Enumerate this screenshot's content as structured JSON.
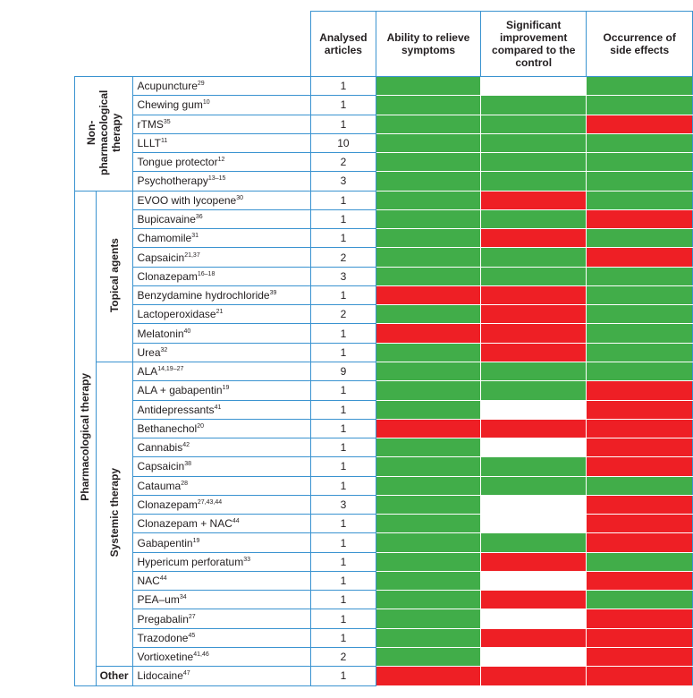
{
  "headers": {
    "articles": "Analysed articles",
    "ability": "Ability to relieve symptoms",
    "improvement": "Significant improvement compared to the control",
    "side_effects": "Occurrence of side effects"
  },
  "groups": {
    "non_pharm": "Non-pharmacological therapy",
    "pharm": "Pharmacological therapy",
    "topical": "Topical agents",
    "systemic": "Systemic therapy",
    "other": "Other"
  },
  "colors": {
    "green": "#41ad49",
    "red": "#ee1f25",
    "white": "#ffffff"
  },
  "rows": [
    {
      "group": "non_pharm",
      "name": "Acupuncture",
      "ref": "29",
      "articles": "1",
      "ability": "green",
      "improvement": "white",
      "side_effects": "green"
    },
    {
      "group": "non_pharm",
      "name": "Chewing gum",
      "ref": "10",
      "articles": "1",
      "ability": "green",
      "improvement": "green",
      "side_effects": "green"
    },
    {
      "group": "non_pharm",
      "name": "rTMS",
      "ref": "35",
      "articles": "1",
      "ability": "green",
      "improvement": "green",
      "side_effects": "red"
    },
    {
      "group": "non_pharm",
      "name": "LLLT",
      "ref": "11",
      "articles": "10",
      "ability": "green",
      "improvement": "green",
      "side_effects": "green"
    },
    {
      "group": "non_pharm",
      "name": "Tongue protector",
      "ref": "12",
      "articles": "2",
      "ability": "green",
      "improvement": "green",
      "side_effects": "green"
    },
    {
      "group": "non_pharm",
      "name": "Psychotherapy",
      "ref": "13–15",
      "articles": "3",
      "ability": "green",
      "improvement": "green",
      "side_effects": "green"
    },
    {
      "group": "topical",
      "name": "EVOO with lycopene",
      "ref": "30",
      "articles": "1",
      "ability": "green",
      "improvement": "red",
      "side_effects": "green"
    },
    {
      "group": "topical",
      "name": "Bupicavaine",
      "ref": "36",
      "articles": "1",
      "ability": "green",
      "improvement": "green",
      "side_effects": "red"
    },
    {
      "group": "topical",
      "name": "Chamomile",
      "ref": "31",
      "articles": "1",
      "ability": "green",
      "improvement": "red",
      "side_effects": "green"
    },
    {
      "group": "topical",
      "name": "Capsaicin",
      "ref": "21,37",
      "articles": "2",
      "ability": "green",
      "improvement": "green",
      "side_effects": "red"
    },
    {
      "group": "topical",
      "name": "Clonazepam",
      "ref": "16–18",
      "articles": "3",
      "ability": "green",
      "improvement": "green",
      "side_effects": "green"
    },
    {
      "group": "topical",
      "name": "Benzydamine hydrochloride",
      "ref": "39",
      "articles": "1",
      "ability": "red",
      "improvement": "red",
      "side_effects": "green"
    },
    {
      "group": "topical",
      "name": "Lactoperoxidase",
      "ref": "21",
      "articles": "2",
      "ability": "green",
      "improvement": "red",
      "side_effects": "green"
    },
    {
      "group": "topical",
      "name": "Melatonin",
      "ref": "40",
      "articles": "1",
      "ability": "red",
      "improvement": "red",
      "side_effects": "green"
    },
    {
      "group": "topical",
      "name": "Urea",
      "ref": "32",
      "articles": "1",
      "ability": "green",
      "improvement": "red",
      "side_effects": "green"
    },
    {
      "group": "systemic",
      "name": "ALA",
      "ref": "14,19–27",
      "articles": "9",
      "ability": "green",
      "improvement": "green",
      "side_effects": "green"
    },
    {
      "group": "systemic",
      "name": "ALA + gabapentin",
      "ref": "19",
      "articles": "1",
      "ability": "green",
      "improvement": "green",
      "side_effects": "red"
    },
    {
      "group": "systemic",
      "name": "Antidepressants",
      "ref": "41",
      "articles": "1",
      "ability": "green",
      "improvement": "white",
      "side_effects": "red"
    },
    {
      "group": "systemic",
      "name": "Bethanechol",
      "ref": "20",
      "articles": "1",
      "ability": "red",
      "improvement": "red",
      "side_effects": "red"
    },
    {
      "group": "systemic",
      "name": "Cannabis",
      "ref": "42",
      "articles": "1",
      "ability": "green",
      "improvement": "white",
      "side_effects": "red"
    },
    {
      "group": "systemic",
      "name": "Capsaicin",
      "ref": "38",
      "articles": "1",
      "ability": "green",
      "improvement": "green",
      "side_effects": "red"
    },
    {
      "group": "systemic",
      "name": "Catauma",
      "ref": "28",
      "articles": "1",
      "ability": "green",
      "improvement": "green",
      "side_effects": "green"
    },
    {
      "group": "systemic",
      "name": "Clonazepam",
      "ref": "27,43,44",
      "articles": "3",
      "ability": "green",
      "improvement": "white",
      "side_effects": "red"
    },
    {
      "group": "systemic",
      "name": "Clonazepam + NAC",
      "ref": "44",
      "articles": "1",
      "ability": "green",
      "improvement": "white",
      "side_effects": "red"
    },
    {
      "group": "systemic",
      "name": "Gabapentin",
      "ref": "19",
      "articles": "1",
      "ability": "green",
      "improvement": "green",
      "side_effects": "red"
    },
    {
      "group": "systemic",
      "name": "Hypericum perforatum",
      "ref": "33",
      "articles": "1",
      "ability": "green",
      "improvement": "red",
      "side_effects": "green"
    },
    {
      "group": "systemic",
      "name": "NAC",
      "ref": "44",
      "articles": "1",
      "ability": "green",
      "improvement": "white",
      "side_effects": "red"
    },
    {
      "group": "systemic",
      "name": "PEA–um",
      "ref": "34",
      "articles": "1",
      "ability": "green",
      "improvement": "red",
      "side_effects": "green"
    },
    {
      "group": "systemic",
      "name": "Pregabalin",
      "ref": "27",
      "articles": "1",
      "ability": "green",
      "improvement": "white",
      "side_effects": "red"
    },
    {
      "group": "systemic",
      "name": "Trazodone",
      "ref": "45",
      "articles": "1",
      "ability": "green",
      "improvement": "red",
      "side_effects": "red"
    },
    {
      "group": "systemic",
      "name": "Vortioxetine",
      "ref": "41,46",
      "articles": "2",
      "ability": "green",
      "improvement": "white",
      "side_effects": "red"
    },
    {
      "group": "other",
      "name": "Lidocaine",
      "ref": "47",
      "articles": "1",
      "ability": "red",
      "improvement": "red",
      "side_effects": "red"
    }
  ]
}
